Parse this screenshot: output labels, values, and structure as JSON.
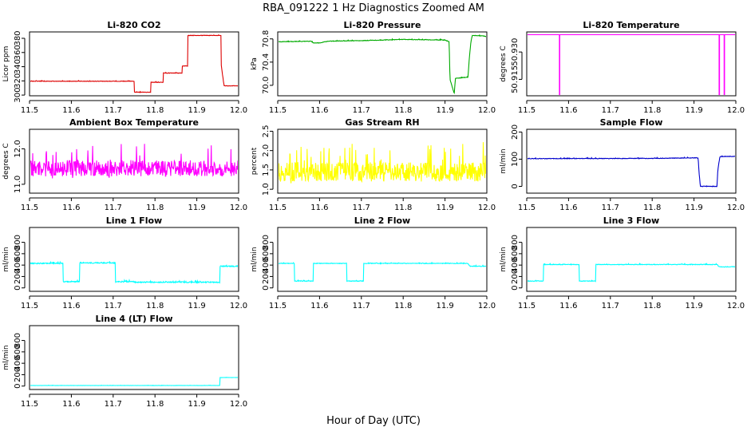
{
  "figure": {
    "title": "RBA_091222  1 Hz Diagnostics Zoomed AM",
    "xlabel": "Hour of Day (UTC)"
  },
  "chart_data": [
    {
      "type": "line",
      "title": "Li-820 CO2",
      "ylabel": "Licor ppm",
      "color": "#dd0000",
      "xlim": [
        11.5,
        12.0
      ],
      "ylim": [
        299,
        389
      ],
      "xticks": [
        11.5,
        11.6,
        11.7,
        11.8,
        11.9,
        12.0
      ],
      "xtick_labels": [
        "11.5",
        "11.6",
        "11.7",
        "11.8",
        "11.9",
        "12.0"
      ],
      "yticks": [
        300,
        320,
        340,
        360,
        380
      ],
      "ytick_labels": [
        "300",
        "320",
        "340",
        "360",
        "380"
      ],
      "noise": 0.6,
      "seed": 11,
      "series": [
        {
          "x": [
            11.5,
            11.75,
            11.75,
            11.79,
            11.79,
            11.82,
            11.82,
            11.865,
            11.865,
            11.878,
            11.878,
            11.958,
            11.958,
            11.965,
            11.975,
            12.0
          ],
          "y": [
            319.5,
            319.5,
            304,
            304,
            318,
            318,
            331,
            331,
            341,
            341,
            384,
            384,
            345,
            313,
            313,
            313
          ]
        }
      ]
    },
    {
      "type": "line",
      "title": "Li-820 Pressure",
      "ylabel": "kPa",
      "color": "#00aa00",
      "xlim": [
        11.5,
        12.0
      ],
      "ylim": [
        69.82,
        70.92
      ],
      "xticks": [
        11.5,
        11.6,
        11.7,
        11.8,
        11.9,
        12.0
      ],
      "xtick_labels": [
        "11.5",
        "11.6",
        "11.7",
        "11.8",
        "11.9",
        "12.0"
      ],
      "yticks": [
        70.0,
        70.4,
        70.8
      ],
      "ytick_labels": [
        "70.0",
        "70.4",
        "70.8"
      ],
      "noise": 0.008,
      "seed": 23,
      "series": [
        {
          "x": [
            11.5,
            11.58,
            11.585,
            11.6,
            11.62,
            11.7,
            11.75,
            11.8,
            11.9,
            11.91,
            11.912,
            11.922,
            11.925,
            11.955,
            11.958,
            11.962,
            11.965,
            11.99,
            12.0
          ],
          "y": [
            70.75,
            70.76,
            70.73,
            70.73,
            70.76,
            70.77,
            70.78,
            70.79,
            70.78,
            70.75,
            70.1,
            69.86,
            70.12,
            70.14,
            70.45,
            70.75,
            70.86,
            70.85,
            70.84
          ]
        }
      ]
    },
    {
      "type": "line",
      "title": "Li-820 Temperature",
      "ylabel": "degrees C",
      "color": "#ff00ff",
      "xlim": [
        11.5,
        12.0
      ],
      "ylim": [
        50.906,
        50.941
      ],
      "xticks": [
        11.5,
        11.6,
        11.7,
        11.8,
        11.9,
        12.0
      ],
      "xtick_labels": [
        "11.5",
        "11.6",
        "11.7",
        "11.8",
        "11.9",
        "12.0"
      ],
      "yticks": [
        50.915,
        50.93
      ],
      "ytick_labels": [
        "50.915",
        "50.930"
      ],
      "noise": 0,
      "seed": 5,
      "series": [
        {
          "x": [
            11.5,
            11.578,
            11.578,
            11.579,
            11.579,
            11.96,
            11.96,
            11.961,
            11.961,
            11.972,
            11.972,
            11.973,
            11.973,
            12.0
          ],
          "y": [
            50.9395,
            50.9395,
            50.906,
            50.906,
            50.9395,
            50.9395,
            50.906,
            50.906,
            50.9395,
            50.9395,
            50.906,
            50.906,
            50.9395,
            50.9395
          ]
        }
      ]
    },
    {
      "type": "line",
      "title": "Ambient Box Temperature",
      "ylabel": "degrees C",
      "color": "#ff00ff",
      "xlim": [
        11.5,
        12.0
      ],
      "ylim": [
        10.75,
        12.55
      ],
      "xticks": [
        11.5,
        11.6,
        11.7,
        11.8,
        11.9,
        12.0
      ],
      "xtick_labels": [
        "11.5",
        "11.6",
        "11.7",
        "11.8",
        "11.9",
        "12.0"
      ],
      "yticks": [
        11.0,
        12.0
      ],
      "ytick_labels": [
        "11.0",
        "12.0"
      ],
      "noise": 0.45,
      "seed": 37,
      "series": [
        {
          "x": [
            11.5,
            12.0
          ],
          "y": [
            11.45,
            11.45
          ]
        }
      ]
    },
    {
      "type": "line",
      "title": "Gas Stream RH",
      "ylabel": "percent",
      "color": "#ffff00",
      "xlim": [
        11.5,
        12.0
      ],
      "ylim": [
        0.9,
        2.55
      ],
      "xticks": [
        11.5,
        11.6,
        11.7,
        11.8,
        11.9,
        12.0
      ],
      "xtick_labels": [
        "11.5",
        "11.6",
        "11.7",
        "11.8",
        "11.9",
        "12.0"
      ],
      "yticks": [
        1.0,
        1.5,
        2.0,
        2.5
      ],
      "ytick_labels": [
        "1.0",
        "1.5",
        "2.0",
        "2.5"
      ],
      "noise": 0.5,
      "seed": 41,
      "series": [
        {
          "x": [
            11.5,
            12.0
          ],
          "y": [
            1.45,
            1.45
          ]
        }
      ]
    },
    {
      "type": "line",
      "title": "Sample Flow",
      "ylabel": "ml/min",
      "color": "#0000cc",
      "xlim": [
        11.5,
        12.0
      ],
      "ylim": [
        -25,
        210
      ],
      "xticks": [
        11.5,
        11.6,
        11.7,
        11.8,
        11.9,
        12.0
      ],
      "xtick_labels": [
        "11.5",
        "11.6",
        "11.7",
        "11.8",
        "11.9",
        "12.0"
      ],
      "yticks": [
        0,
        100,
        200
      ],
      "ytick_labels": [
        "0",
        "100",
        "200"
      ],
      "noise": 2,
      "seed": 53,
      "series": [
        {
          "x": [
            11.5,
            11.8,
            11.91,
            11.912,
            11.915,
            11.955,
            11.957,
            11.962,
            12.0
          ],
          "y": [
            102,
            103,
            105,
            55,
            0,
            0,
            60,
            110,
            110
          ]
        }
      ]
    },
    {
      "type": "line",
      "title": "Line 1 Flow",
      "ylabel": "ml/min",
      "color": "#00ffff",
      "xlim": [
        11.5,
        12.0
      ],
      "ylim": [
        -60,
        1060
      ],
      "xticks": [
        11.5,
        11.6,
        11.7,
        11.8,
        11.9,
        12.0
      ],
      "xtick_labels": [
        "11.5",
        "11.6",
        "11.7",
        "11.8",
        "11.9",
        "12.0"
      ],
      "yticks": [
        0,
        200,
        400,
        600,
        800
      ],
      "ytick_labels": [
        "0",
        "200",
        "400",
        "600",
        "800"
      ],
      "noise": 18,
      "seed": 61,
      "series": [
        {
          "x": [
            11.5,
            11.58,
            11.58,
            11.62,
            11.62,
            11.705,
            11.705,
            11.75,
            11.75,
            11.955,
            11.955,
            12.0
          ],
          "y": [
            430,
            430,
            110,
            110,
            440,
            440,
            110,
            110,
            100,
            100,
            380,
            380
          ]
        }
      ]
    },
    {
      "type": "line",
      "title": "Line 2 Flow",
      "ylabel": "ml/min",
      "color": "#00ffff",
      "xlim": [
        11.5,
        12.0
      ],
      "ylim": [
        -60,
        1060
      ],
      "xticks": [
        11.5,
        11.6,
        11.7,
        11.8,
        11.9,
        12.0
      ],
      "xtick_labels": [
        "11.5",
        "11.6",
        "11.7",
        "11.8",
        "11.9",
        "12.0"
      ],
      "yticks": [
        0,
        200,
        400,
        600,
        800
      ],
      "ytick_labels": [
        "0",
        "200",
        "400",
        "600",
        "800"
      ],
      "noise": 10,
      "seed": 67,
      "series": [
        {
          "x": [
            11.5,
            11.54,
            11.54,
            11.585,
            11.585,
            11.665,
            11.665,
            11.705,
            11.705,
            11.955,
            11.96,
            12.0
          ],
          "y": [
            430,
            430,
            120,
            120,
            430,
            430,
            120,
            120,
            430,
            430,
            380,
            380
          ]
        }
      ]
    },
    {
      "type": "line",
      "title": "Line 3 Flow",
      "ylabel": "ml/min",
      "color": "#00ffff",
      "xlim": [
        11.5,
        12.0
      ],
      "ylim": [
        -60,
        1060
      ],
      "xticks": [
        11.5,
        11.6,
        11.7,
        11.8,
        11.9,
        12.0
      ],
      "xtick_labels": [
        "11.5",
        "11.6",
        "11.7",
        "11.8",
        "11.9",
        "12.0"
      ],
      "yticks": [
        0,
        200,
        400,
        600,
        800
      ],
      "ytick_labels": [
        "0",
        "200",
        "400",
        "600",
        "800"
      ],
      "noise": 10,
      "seed": 71,
      "series": [
        {
          "x": [
            11.5,
            11.54,
            11.54,
            11.625,
            11.625,
            11.665,
            11.665,
            11.955,
            11.96,
            12.0
          ],
          "y": [
            120,
            120,
            410,
            410,
            120,
            120,
            410,
            410,
            370,
            370
          ]
        }
      ]
    },
    {
      "type": "line",
      "title": "Line 4 (LT) Flow",
      "ylabel": "ml/min",
      "color": "#00ffff",
      "xlim": [
        11.5,
        12.0
      ],
      "ylim": [
        -60,
        1060
      ],
      "xticks": [
        11.5,
        11.6,
        11.7,
        11.8,
        11.9,
        12.0
      ],
      "xtick_labels": [
        "11.5",
        "11.6",
        "11.7",
        "11.8",
        "11.9",
        "12.0"
      ],
      "yticks": [
        0,
        200,
        400,
        600,
        800
      ],
      "ytick_labels": [
        "0",
        "200",
        "400",
        "600",
        "800"
      ],
      "noise": 3,
      "seed": 79,
      "series": [
        {
          "x": [
            11.5,
            11.955,
            11.955,
            12.0
          ],
          "y": [
            10,
            10,
            150,
            150
          ]
        }
      ]
    }
  ]
}
